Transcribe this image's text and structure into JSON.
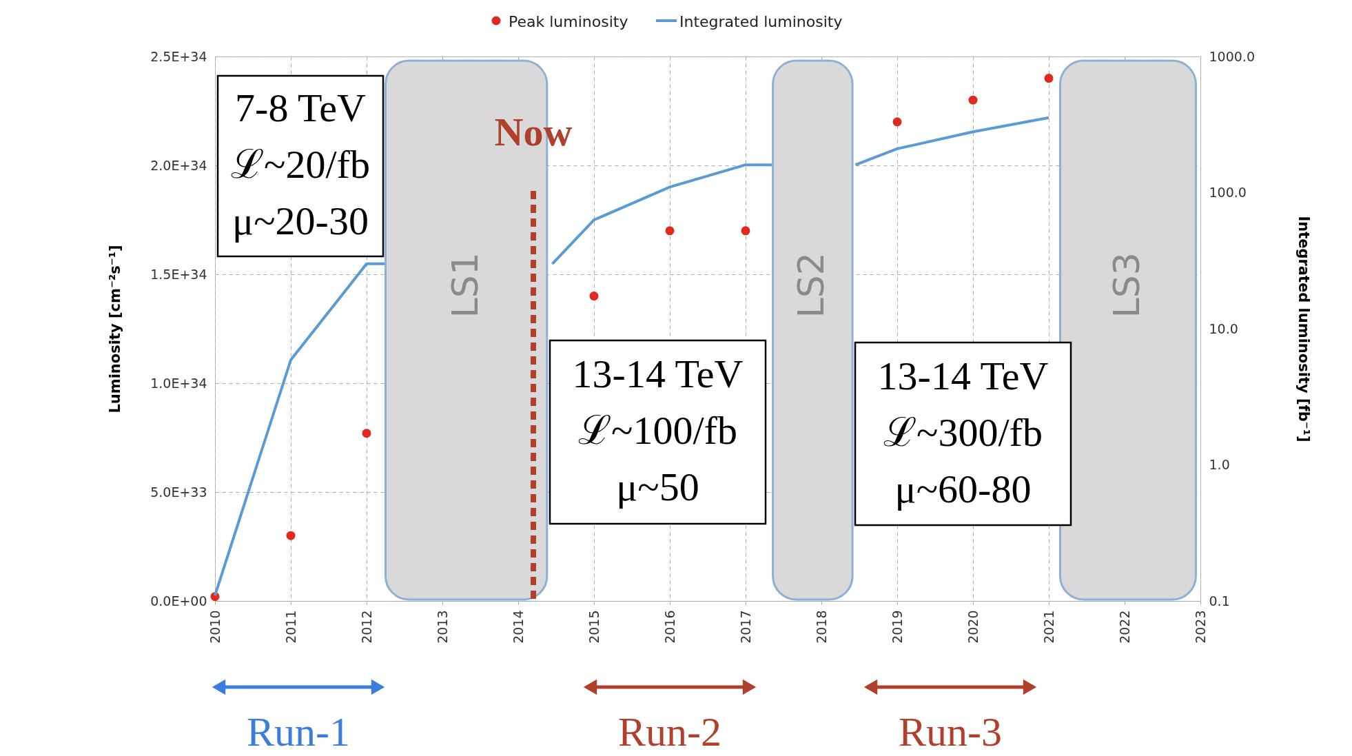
{
  "chart_data": {
    "type": "scatter",
    "ylabel": "Luminosity [cm⁻²s⁻¹]",
    "y2label": "Integrated luminosity [fb⁻¹]",
    "series": [
      {
        "name": "Peak luminosity",
        "color": "#e02a1f",
        "x": [
          2010,
          2011,
          2012,
          2015,
          2016,
          2017,
          2019,
          2020,
          2021
        ],
        "values": [
          2e+32,
          3e+33,
          7.7e+33,
          1.4e+34,
          1.7e+34,
          1.7e+34,
          2.2e+34,
          2.3e+34,
          2.4e+34
        ]
      },
      {
        "name": "Integrated luminosity",
        "type": "line",
        "axis": "y2",
        "color": "#5b9bd5",
        "x": [
          2010,
          2011,
          2012,
          2012.25,
          2013.3,
          2014.45,
          2015,
          2016,
          2017,
          2017.35,
          2017.9,
          2018.45,
          2019,
          2020,
          2021
        ],
        "values": [
          0.11,
          5.9,
          30,
          30,
          null,
          30,
          63,
          110,
          160,
          160,
          null,
          160,
          210,
          280,
          355
        ]
      }
    ],
    "xlim": [
      2010,
      2023
    ],
    "xticks": [
      2010,
      2011,
      2012,
      2013,
      2014,
      2015,
      2016,
      2017,
      2018,
      2019,
      2020,
      2021,
      2022,
      2023
    ],
    "ylim": [
      0,
      2.5e+34
    ],
    "yticks": [
      {
        "value": 0,
        "label": "0.0E+00"
      },
      {
        "value": 5e+33,
        "label": "5.0E+33"
      },
      {
        "value": 1e+34,
        "label": "1.0E+34"
      },
      {
        "value": 1.5e+34,
        "label": "1.5E+34"
      },
      {
        "value": 2e+34,
        "label": "2.0E+34"
      },
      {
        "value": 2.5e+34,
        "label": "2.5E+34"
      }
    ],
    "y2lim": [
      0.1,
      1000
    ],
    "y2ticks": [
      0.1,
      {
        "value": 1,
        "label": "1.0"
      },
      {
        "value": 10,
        "label": "10.0"
      },
      {
        "value": 100,
        "label": "100.0"
      },
      {
        "value": 1000,
        "label": "1000.0"
      }
    ],
    "log": "y2",
    "grid": true,
    "legend": "top",
    "bands": [
      {
        "axis": "x",
        "from": 2012.25,
        "to": 2014.38,
        "label": "LS1",
        "color": "#d9d9d9"
      },
      {
        "axis": "x",
        "from": 2017.36,
        "to": 2018.41,
        "label": "LS2",
        "color": "#d9d9d9"
      },
      {
        "axis": "x",
        "from": 2021.15,
        "to": 2022.94,
        "label": "LS3",
        "color": "#d9d9d9"
      }
    ],
    "ref_lines": [
      {
        "axis": "x",
        "value": 2014.2,
        "label": "Now",
        "color": "#b0402c",
        "line_style": "dashed"
      }
    ],
    "annotations": [
      "7-8 TeV\nℒ~20/fb\nμ~20-30",
      "13-14 TeV\nℒ~100/fb\nμ~50",
      "13-14 TeV\nℒ~300/fb\nμ~60-80",
      "Run-1",
      "Run-2",
      "Run-3"
    ]
  }
}
